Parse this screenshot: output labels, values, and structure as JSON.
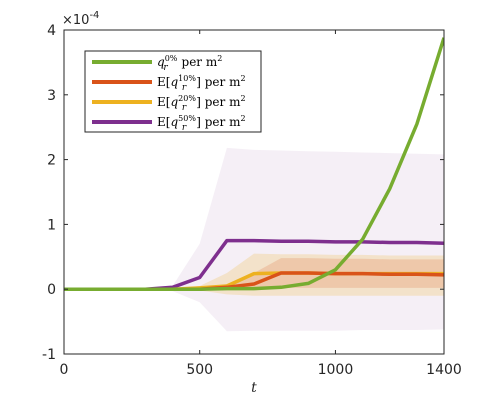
{
  "chart_data": {
    "type": "line",
    "title": "",
    "xlabel": "t",
    "ylabel": "",
    "xlim": [
      0,
      1400
    ],
    "ylim": [
      -1,
      4
    ],
    "y_scale_label": "×10^-4",
    "xticks": [
      "0",
      "500",
      "1000",
      "1400"
    ],
    "yticks": [
      "-1",
      "0",
      "1",
      "2",
      "3",
      "4"
    ],
    "xtick_values": [
      0,
      500,
      1000,
      1400
    ],
    "ytick_values": [
      -1,
      0,
      1,
      2,
      3,
      4
    ],
    "grid": false,
    "legend_position": "top-left",
    "legend": [
      {
        "id": "s0",
        "main": "q",
        "sub": "r",
        "sup": "0%",
        "pre": "",
        "post": "  per  m",
        "post_sup": "2"
      },
      {
        "id": "s10",
        "main": "q",
        "sub": "r",
        "sup": "10%",
        "pre": "E[",
        "post": "]  per  m",
        "post_sup": "2"
      },
      {
        "id": "s20",
        "main": "q",
        "sub": "r",
        "sup": "20%",
        "pre": "E[",
        "post": "]  per  m",
        "post_sup": "2"
      },
      {
        "id": "s50",
        "main": "q",
        "sub": "r",
        "sup": "50%",
        "pre": "E[",
        "post": "]  per  m",
        "post_sup": "2"
      }
    ],
    "series": [
      {
        "id": "s0",
        "color": "#77AC30",
        "x": [
          0,
          100,
          200,
          300,
          400,
          500,
          600,
          700,
          800,
          900,
          1000,
          1100,
          1200,
          1300,
          1400
        ],
        "values": [
          0,
          0,
          0,
          0,
          0,
          0,
          0.01,
          0.01,
          0.03,
          0.09,
          0.3,
          0.77,
          1.55,
          2.55,
          3.88
        ]
      },
      {
        "id": "s10",
        "color": "#D95319",
        "x": [
          0,
          100,
          200,
          300,
          400,
          500,
          600,
          700,
          800,
          900,
          1000,
          1100,
          1200,
          1300,
          1400
        ],
        "values": [
          0,
          0,
          0,
          0,
          0,
          0,
          0.03,
          0.08,
          0.25,
          0.25,
          0.24,
          0.24,
          0.23,
          0.23,
          0.22
        ]
      },
      {
        "id": "s20",
        "color": "#EDB120",
        "x": [
          0,
          100,
          200,
          300,
          400,
          500,
          600,
          700,
          800,
          900,
          1000,
          1100,
          1200,
          1300,
          1400
        ],
        "values": [
          0,
          0,
          0,
          0,
          0,
          0.02,
          0.05,
          0.24,
          0.25,
          0.25,
          0.24,
          0.24,
          0.24,
          0.24,
          0.24
        ]
      },
      {
        "id": "s50",
        "color": "#7E2F8E",
        "x": [
          0,
          100,
          200,
          300,
          400,
          500,
          600,
          700,
          800,
          900,
          1000,
          1100,
          1200,
          1300,
          1400
        ],
        "values": [
          0,
          0,
          0,
          0,
          0.03,
          0.18,
          0.75,
          0.75,
          0.74,
          0.74,
          0.73,
          0.73,
          0.72,
          0.72,
          0.71
        ]
      }
    ],
    "bands": [
      {
        "id": "s50",
        "color": "#7E2F8E",
        "opacity": 0.08,
        "x": [
          0,
          100,
          200,
          300,
          400,
          500,
          600,
          700,
          800,
          900,
          1000,
          1100,
          1200,
          1300,
          1400
        ],
        "lower": [
          0,
          0,
          0,
          0,
          -0.03,
          -0.2,
          -0.65,
          -0.64,
          -0.64,
          -0.64,
          -0.64,
          -0.63,
          -0.63,
          -0.63,
          -0.62
        ],
        "upper": [
          0,
          0,
          0,
          0,
          0.05,
          0.7,
          2.18,
          2.15,
          2.14,
          2.13,
          2.12,
          2.11,
          2.1,
          2.09,
          2.08
        ]
      },
      {
        "id": "s20",
        "color": "#EDB120",
        "opacity": 0.2,
        "x": [
          0,
          100,
          200,
          300,
          400,
          500,
          600,
          700,
          800,
          900,
          1000,
          1100,
          1200,
          1300,
          1400
        ],
        "lower": [
          0,
          0,
          0,
          0,
          0,
          -0.02,
          -0.08,
          -0.1,
          -0.1,
          -0.1,
          -0.1,
          -0.1,
          -0.1,
          -0.1,
          -0.1
        ],
        "upper": [
          0,
          0,
          0,
          0,
          0,
          0.05,
          0.25,
          0.55,
          0.54,
          0.54,
          0.53,
          0.53,
          0.52,
          0.52,
          0.52
        ]
      },
      {
        "id": "s10",
        "color": "#D95319",
        "opacity": 0.18,
        "x": [
          0,
          100,
          200,
          300,
          400,
          500,
          600,
          700,
          800,
          900,
          1000,
          1100,
          1200,
          1300,
          1400
        ],
        "lower": [
          0,
          0,
          0,
          0,
          0,
          0,
          0,
          0,
          0.02,
          0.02,
          0.02,
          0.02,
          0.02,
          0.02,
          0.02
        ],
        "upper": [
          0,
          0,
          0,
          0,
          0,
          0,
          0.08,
          0.25,
          0.48,
          0.48,
          0.47,
          0.47,
          0.46,
          0.46,
          0.46
        ]
      }
    ]
  }
}
